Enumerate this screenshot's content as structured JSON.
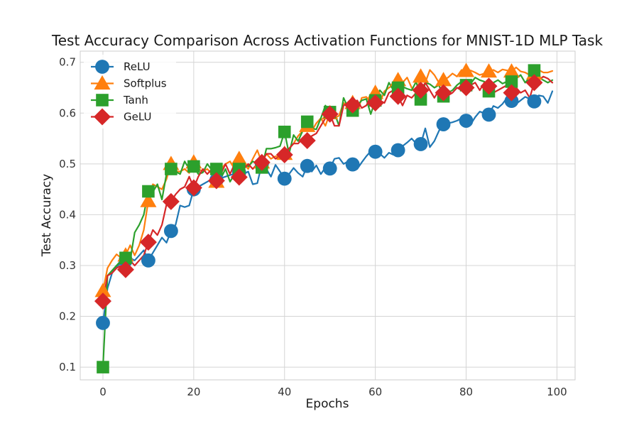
{
  "chart_data": {
    "type": "line",
    "title": "Test Accuracy Comparison Across Activation Functions for MNIST-1D MLP Task",
    "xlabel": "Epochs",
    "ylabel": "Test Accuracy",
    "xlim": [
      -5,
      104
    ],
    "ylim": [
      0.075,
      0.722
    ],
    "xticks": [
      0,
      20,
      40,
      60,
      80,
      100
    ],
    "yticks": [
      0.1,
      0.2,
      0.3,
      0.4,
      0.5,
      0.6,
      0.7
    ],
    "xtick_labels": [
      "0",
      "20",
      "40",
      "60",
      "80",
      "100"
    ],
    "ytick_labels": [
      "0.1",
      "0.2",
      "0.3",
      "0.4",
      "0.5",
      "0.6",
      "0.7"
    ],
    "grid": true,
    "legend_position": "upper-left",
    "marker_every": 5,
    "x": [
      0,
      1,
      2,
      3,
      4,
      5,
      6,
      7,
      8,
      9,
      10,
      11,
      12,
      13,
      14,
      15,
      16,
      17,
      18,
      19,
      20,
      21,
      22,
      23,
      24,
      25,
      26,
      27,
      28,
      29,
      30,
      31,
      32,
      33,
      34,
      35,
      36,
      37,
      38,
      39,
      40,
      41,
      42,
      43,
      44,
      45,
      46,
      47,
      48,
      49,
      50,
      51,
      52,
      53,
      54,
      55,
      56,
      57,
      58,
      59,
      60,
      61,
      62,
      63,
      64,
      65,
      66,
      67,
      68,
      69,
      70,
      71,
      72,
      73,
      74,
      75,
      76,
      77,
      78,
      79,
      80,
      81,
      82,
      83,
      84,
      85,
      86,
      87,
      88,
      89,
      90,
      91,
      92,
      93,
      94,
      95,
      96,
      97,
      98,
      99
    ],
    "series": [
      {
        "name": "ReLU",
        "color": "#1f77b4",
        "marker": "circle",
        "values": [
          0.187,
          0.255,
          0.285,
          0.298,
          0.305,
          0.31,
          0.315,
          0.31,
          0.32,
          0.33,
          0.31,
          0.325,
          0.34,
          0.355,
          0.345,
          0.368,
          0.38,
          0.418,
          0.415,
          0.418,
          0.45,
          0.455,
          0.46,
          0.465,
          0.47,
          0.468,
          0.472,
          0.475,
          0.478,
          0.48,
          0.483,
          0.48,
          0.485,
          0.46,
          0.462,
          0.5,
          0.49,
          0.475,
          0.498,
          0.485,
          0.471,
          0.48,
          0.492,
          0.482,
          0.475,
          0.496,
          0.485,
          0.497,
          0.48,
          0.493,
          0.491,
          0.51,
          0.512,
          0.5,
          0.505,
          0.499,
          0.49,
          0.503,
          0.515,
          0.525,
          0.524,
          0.52,
          0.512,
          0.522,
          0.518,
          0.527,
          0.535,
          0.542,
          0.55,
          0.54,
          0.539,
          0.57,
          0.533,
          0.545,
          0.565,
          0.578,
          0.58,
          0.582,
          0.585,
          0.59,
          0.585,
          0.578,
          0.592,
          0.603,
          0.6,
          0.597,
          0.614,
          0.61,
          0.618,
          0.63,
          0.624,
          0.618,
          0.625,
          0.632,
          0.628,
          0.623,
          0.635,
          0.633,
          0.62,
          0.643
        ]
      },
      {
        "name": "Softplus",
        "color": "#ff7f0e",
        "marker": "triangle",
        "values": [
          0.25,
          0.295,
          0.31,
          0.322,
          0.315,
          0.32,
          0.34,
          0.32,
          0.34,
          0.37,
          0.427,
          0.46,
          0.455,
          0.45,
          0.47,
          0.5,
          0.485,
          0.485,
          0.49,
          0.482,
          0.503,
          0.49,
          0.485,
          0.49,
          0.48,
          0.465,
          0.49,
          0.5,
          0.505,
          0.49,
          0.51,
          0.5,
          0.49,
          0.51,
          0.527,
          0.503,
          0.52,
          0.51,
          0.515,
          0.512,
          0.52,
          0.53,
          0.54,
          0.555,
          0.565,
          0.575,
          0.565,
          0.58,
          0.59,
          0.575,
          0.6,
          0.59,
          0.595,
          0.62,
          0.615,
          0.62,
          0.6,
          0.63,
          0.632,
          0.62,
          0.64,
          0.62,
          0.643,
          0.65,
          0.655,
          0.665,
          0.66,
          0.67,
          0.65,
          0.64,
          0.672,
          0.66,
          0.685,
          0.675,
          0.66,
          0.665,
          0.67,
          0.678,
          0.672,
          0.685,
          0.683,
          0.684,
          0.68,
          0.675,
          0.678,
          0.682,
          0.685,
          0.68,
          0.686,
          0.684,
          0.682,
          0.69,
          0.682,
          0.68,
          0.675,
          0.678,
          0.685,
          0.68,
          0.68,
          0.683
        ]
      },
      {
        "name": "Tanh",
        "color": "#2ca02c",
        "marker": "square",
        "values": [
          0.1,
          0.28,
          0.29,
          0.3,
          0.31,
          0.315,
          0.31,
          0.365,
          0.38,
          0.4,
          0.446,
          0.445,
          0.46,
          0.43,
          0.48,
          0.49,
          0.485,
          0.48,
          0.505,
          0.49,
          0.495,
          0.48,
          0.483,
          0.5,
          0.488,
          0.49,
          0.472,
          0.49,
          0.465,
          0.48,
          0.49,
          0.502,
          0.495,
          0.505,
          0.5,
          0.493,
          0.53,
          0.53,
          0.532,
          0.535,
          0.563,
          0.52,
          0.557,
          0.545,
          0.565,
          0.583,
          0.57,
          0.568,
          0.59,
          0.615,
          0.602,
          0.6,
          0.575,
          0.63,
          0.61,
          0.605,
          0.615,
          0.625,
          0.628,
          0.598,
          0.625,
          0.645,
          0.635,
          0.66,
          0.645,
          0.65,
          0.652,
          0.648,
          0.645,
          0.662,
          0.627,
          0.66,
          0.657,
          0.65,
          0.655,
          0.633,
          0.64,
          0.645,
          0.655,
          0.662,
          0.655,
          0.658,
          0.67,
          0.665,
          0.662,
          0.643,
          0.66,
          0.665,
          0.658,
          0.662,
          0.662,
          0.668,
          0.675,
          0.66,
          0.67,
          0.684,
          0.67,
          0.665,
          0.66,
          0.665
        ]
      },
      {
        "name": "GeLU",
        "color": "#d62728",
        "marker": "diamond",
        "values": [
          0.23,
          0.28,
          0.285,
          0.295,
          0.3,
          0.292,
          0.31,
          0.3,
          0.31,
          0.32,
          0.346,
          0.37,
          0.36,
          0.38,
          0.42,
          0.426,
          0.44,
          0.45,
          0.455,
          0.475,
          0.453,
          0.475,
          0.49,
          0.48,
          0.49,
          0.467,
          0.48,
          0.5,
          0.48,
          0.5,
          0.474,
          0.49,
          0.5,
          0.49,
          0.5,
          0.503,
          0.52,
          0.52,
          0.51,
          0.515,
          0.518,
          0.53,
          0.54,
          0.54,
          0.55,
          0.546,
          0.555,
          0.56,
          0.575,
          0.59,
          0.598,
          0.575,
          0.575,
          0.615,
          0.62,
          0.616,
          0.625,
          0.61,
          0.615,
          0.632,
          0.62,
          0.625,
          0.62,
          0.64,
          0.645,
          0.633,
          0.615,
          0.635,
          0.63,
          0.64,
          0.645,
          0.66,
          0.645,
          0.63,
          0.645,
          0.64,
          0.635,
          0.64,
          0.65,
          0.645,
          0.65,
          0.655,
          0.66,
          0.645,
          0.66,
          0.653,
          0.64,
          0.645,
          0.65,
          0.655,
          0.64,
          0.65,
          0.64,
          0.645,
          0.63,
          0.66,
          0.665,
          0.672,
          0.668,
          0.66
        ]
      }
    ]
  }
}
